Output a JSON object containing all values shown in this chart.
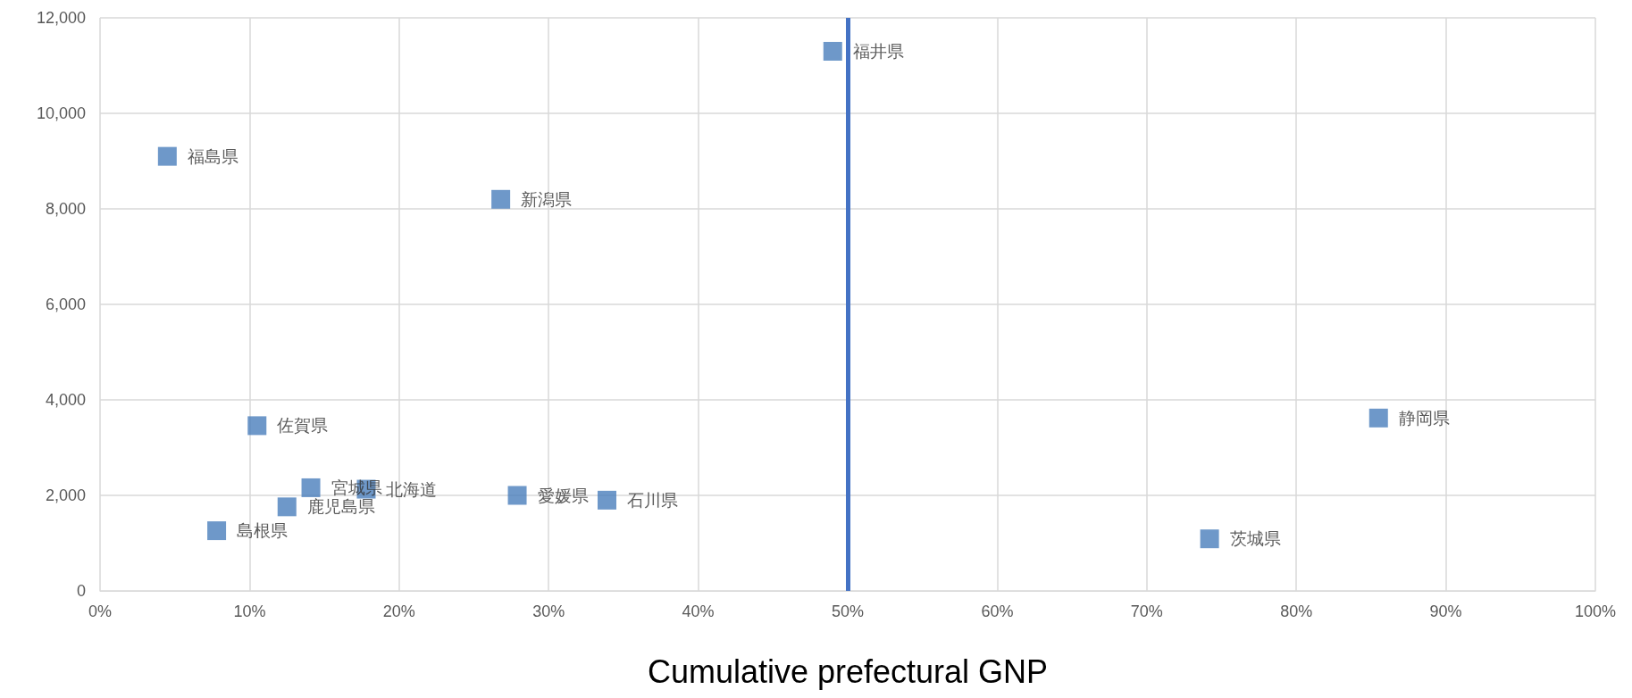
{
  "chart_data": {
    "type": "scatter",
    "xlabel": "Cumulative prefectural GNP",
    "marker": "square",
    "grid": true,
    "legend": false,
    "xlim": [
      0,
      100
    ],
    "xticks": [
      {
        "value": 0,
        "label": "0%"
      },
      {
        "value": 10,
        "label": "10%"
      },
      {
        "value": 20,
        "label": "20%"
      },
      {
        "value": 30,
        "label": "30%"
      },
      {
        "value": 40,
        "label": "40%"
      },
      {
        "value": 50,
        "label": "50%"
      },
      {
        "value": 60,
        "label": "60%"
      },
      {
        "value": 70,
        "label": "70%"
      },
      {
        "value": 80,
        "label": "80%"
      },
      {
        "value": 90,
        "label": "90%"
      },
      {
        "value": 100,
        "label": "100%"
      }
    ],
    "ylim": [
      0,
      12000
    ],
    "yticks": [
      {
        "value": 0,
        "label": "0"
      },
      {
        "value": 2000,
        "label": "2,000"
      },
      {
        "value": 4000,
        "label": "4,000"
      },
      {
        "value": 6000,
        "label": "6,000"
      },
      {
        "value": 8000,
        "label": "8,000"
      },
      {
        "value": 10000,
        "label": "10,000"
      },
      {
        "value": 12000,
        "label": "12,000"
      }
    ],
    "ref_lines": [
      {
        "axis": "x",
        "value": 50,
        "color": "#4472c4"
      }
    ],
    "series": [
      {
        "name": "福井県",
        "color": "#4a7ebb",
        "x": [
          49.0
        ],
        "values": [
          11300
        ]
      },
      {
        "name": "福島県",
        "color": "#4a7ebb",
        "x": [
          4.5
        ],
        "values": [
          9100
        ]
      },
      {
        "name": "新潟県",
        "color": "#4a7ebb",
        "x": [
          26.8
        ],
        "values": [
          8200
        ]
      },
      {
        "name": "佐賀県",
        "color": "#4a7ebb",
        "x": [
          10.5
        ],
        "values": [
          3460
        ]
      },
      {
        "name": "静岡県",
        "color": "#4a7ebb",
        "x": [
          85.5
        ],
        "values": [
          3620
        ]
      },
      {
        "name": "宮城県",
        "color": "#4a7ebb",
        "x": [
          14.1
        ],
        "values": [
          2160
        ]
      },
      {
        "name": "北海道",
        "color": "#4a7ebb",
        "x": [
          17.8
        ],
        "values": [
          2130
        ]
      },
      {
        "name": "鹿児島県",
        "color": "#4a7ebb",
        "x": [
          12.5
        ],
        "values": [
          1760
        ]
      },
      {
        "name": "島根県",
        "color": "#4a7ebb",
        "x": [
          7.8
        ],
        "values": [
          1260
        ]
      },
      {
        "name": "愛媛県",
        "color": "#4a7ebb",
        "x": [
          27.9
        ],
        "values": [
          2000
        ]
      },
      {
        "name": "石川県",
        "color": "#4a7ebb",
        "x": [
          33.9
        ],
        "values": [
          1900
        ]
      },
      {
        "name": "茨城県",
        "color": "#4a7ebb",
        "x": [
          74.2
        ],
        "values": [
          1090
        ]
      }
    ]
  }
}
